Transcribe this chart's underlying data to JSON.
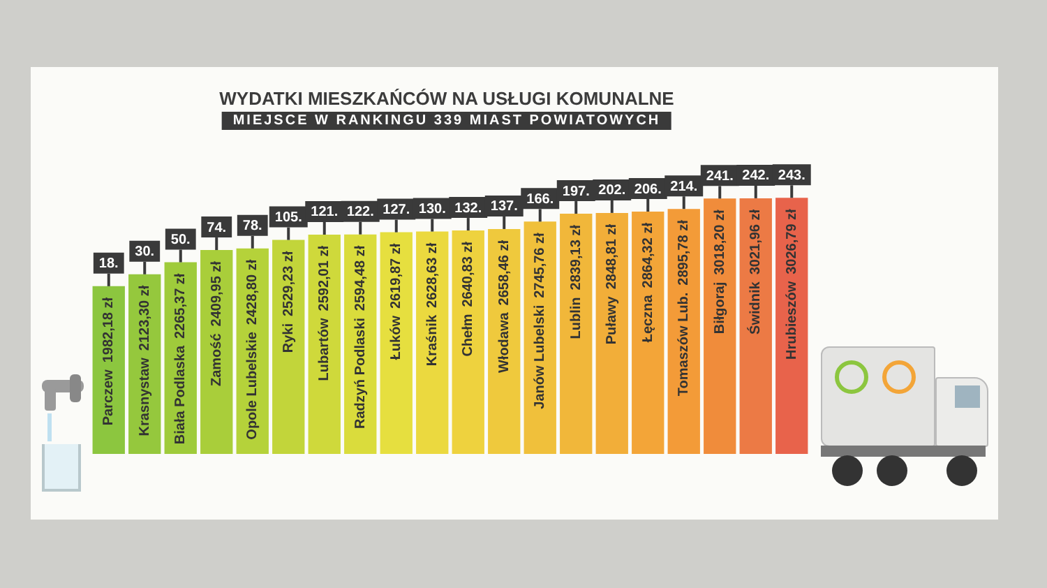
{
  "chart_data": {
    "type": "bar",
    "title": "WYDATKI MIESZKAŃCÓW NA USŁUGI KOMUNALNE",
    "subtitle": "MIEJSCE W RANKINGU 339 MIAST POWIATOWYCH",
    "categories": [
      "Parczew",
      "Krasnystaw",
      "Biała Podlaska",
      "Zamość",
      "Opole Lubelskie",
      "Ryki",
      "Lubartów",
      "Radzyń Podlaski",
      "Łuków",
      "Kraśnik",
      "Chełm",
      "Włodawa",
      "Janów Lubelski",
      "Lublin",
      "Puławy",
      "Łęczna",
      "Tomaszów Lub.",
      "Biłgoraj",
      "Świdnik",
      "Hrubieszów"
    ],
    "values": [
      1982.18,
      2123.3,
      2265.37,
      2409.95,
      2428.8,
      2529.23,
      2592.01,
      2594.48,
      2619.87,
      2628.63,
      2640.83,
      2658.46,
      2745.76,
      2839.13,
      2848.81,
      2864.32,
      2895.78,
      3018.2,
      3021.96,
      3026.79
    ],
    "value_labels": [
      "1982,18 zł",
      "2123,30 zł",
      "2265,37 zł",
      "2409,95 zł",
      "2428,80 zł",
      "2529,23 zł",
      "2592,01 zł",
      "2594,48 zł",
      "2619,87 zł",
      "2628,63 zł",
      "2640,83 zł",
      "2658,46 zł",
      "2745,76 zł",
      "2839,13 zł",
      "2848,81 zł",
      "2864,32 zł",
      "2895,78 zł",
      "3018,20 zł",
      "3021,96 zł",
      "3026,79 zł"
    ],
    "colors": [
      "#8cc63f",
      "#95c83d",
      "#9fcb3b",
      "#a9ce3a",
      "#b5d23a",
      "#c2d53a",
      "#cfd93b",
      "#dadc3c",
      "#e6df3f",
      "#ebd93f",
      "#eed23e",
      "#efc93d",
      "#f0c03b",
      "#f1b73a",
      "#f2ae39",
      "#f3a538",
      "#f39b38",
      "#f08c3b",
      "#ec7a45",
      "#e8634b"
    ],
    "tick_labels": false,
    "legend": false,
    "annotations": [
      {
        "text": "18.",
        "x": "Parczew",
        "y": 1982.18
      },
      {
        "text": "30.",
        "x": "Krasnystaw",
        "y": 2123.3
      },
      {
        "text": "50.",
        "x": "Biała Podlaska",
        "y": 2265.37
      },
      {
        "text": "74.",
        "x": "Zamość",
        "y": 2409.95
      },
      {
        "text": "78.",
        "x": "Opole Lubelskie",
        "y": 2428.8
      },
      {
        "text": "105.",
        "x": "Ryki",
        "y": 2529.23
      },
      {
        "text": "121.",
        "x": "Lubartów",
        "y": 2592.01
      },
      {
        "text": "122.",
        "x": "Radzyń Podlaski",
        "y": 2594.48
      },
      {
        "text": "127.",
        "x": "Łuków",
        "y": 2619.87
      },
      {
        "text": "130.",
        "x": "Kraśnik",
        "y": 2628.63
      },
      {
        "text": "132.",
        "x": "Chełm",
        "y": 2640.83
      },
      {
        "text": "137.",
        "x": "Włodawa",
        "y": 2658.46
      },
      {
        "text": "166.",
        "x": "Janów Lubelski",
        "y": 2745.76
      },
      {
        "text": "197.",
        "x": "Lublin",
        "y": 2839.13
      },
      {
        "text": "202.",
        "x": "Puławy",
        "y": 2848.81
      },
      {
        "text": "206.",
        "x": "Łęczna",
        "y": 2864.32
      },
      {
        "text": "214.",
        "x": "Tomaszów Lub.",
        "y": 2895.78
      },
      {
        "text": "241.",
        "x": "Biłgoraj",
        "y": 3018.2
      },
      {
        "text": "242.",
        "x": "Świdnik",
        "y": 3021.96
      },
      {
        "text": "243.",
        "x": "Hrubieszów",
        "y": 3026.79
      }
    ]
  }
}
